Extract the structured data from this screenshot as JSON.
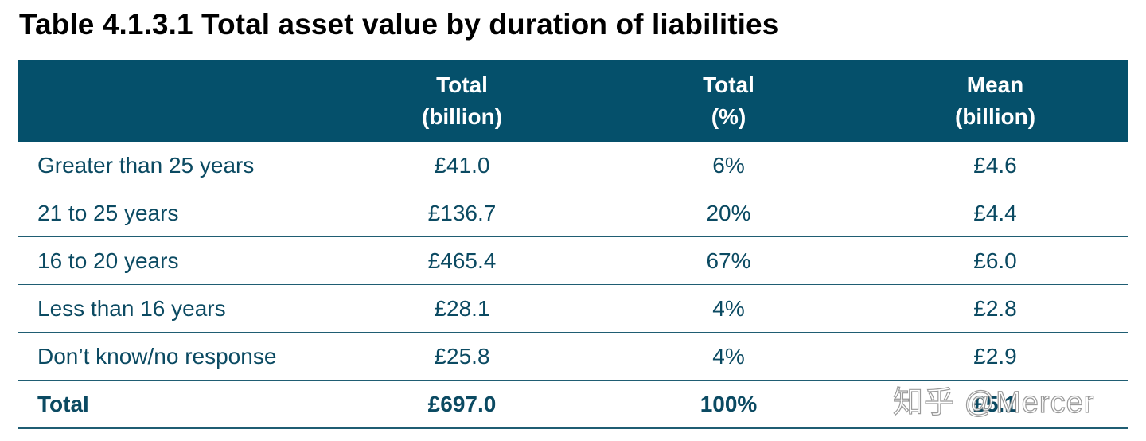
{
  "title": "Table 4.1.3.1 Total asset value by duration of liabilities",
  "header": {
    "col1": {
      "line1": "Total",
      "line2": "(billion)"
    },
    "col2": {
      "line1": "Total",
      "line2": "(%)"
    },
    "col3": {
      "line1": "Mean",
      "line2": "(billion)"
    }
  },
  "rows": [
    {
      "label": "Greater than 25 years",
      "total": "£41.0",
      "pct": "6%",
      "mean": "£4.6"
    },
    {
      "label": "21 to 25 years",
      "total": "£136.7",
      "pct": "20%",
      "mean": "£4.4"
    },
    {
      "label": "16 to 20 years",
      "total": "£465.4",
      "pct": "67%",
      "mean": "£6.0"
    },
    {
      "label": "Less than 16 years",
      "total": "£28.1",
      "pct": "4%",
      "mean": "£2.8"
    },
    {
      "label": "Don’t know/no response",
      "total": "£25.8",
      "pct": "4%",
      "mean": "£2.9"
    }
  ],
  "total_row": {
    "label": "Total",
    "total": "£697.0",
    "pct": "100%",
    "mean": "£5.1"
  },
  "watermark": "知乎 @Mercer",
  "colors": {
    "header_bg": "#05506b",
    "text": "#0b4a62",
    "rule": "#1f5d73"
  }
}
